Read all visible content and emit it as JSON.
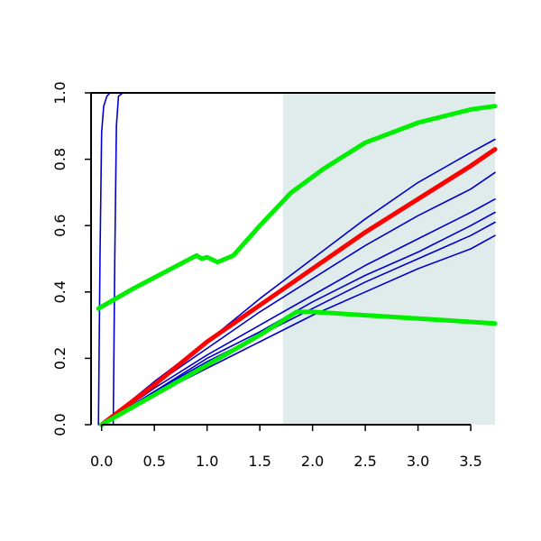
{
  "chart_data": {
    "type": "line",
    "title": "",
    "xlabel": "",
    "ylabel": "",
    "xlim": [
      -0.1,
      3.73
    ],
    "ylim": [
      0,
      1
    ],
    "x_ticks": [
      0,
      0.5,
      1,
      1.5,
      2,
      2.5,
      3,
      3.5
    ],
    "x_tick_labels": [
      "0.0",
      "0.5",
      "1.0",
      "1.5",
      "2.0",
      "2.5",
      "3.0",
      "3.5"
    ],
    "y_ticks": [
      0,
      0.2,
      0.4,
      0.6,
      0.8,
      1
    ],
    "y_tick_labels": [
      "0.0",
      "0.2",
      "0.4",
      "0.6",
      "0.8",
      "1.0"
    ],
    "grid": false,
    "shaded_region": {
      "x_start": 1.72,
      "x_end": 3.73,
      "color": "#dfeceb"
    },
    "series": [
      {
        "color": "#0000cc",
        "role": "thin",
        "points": [
          [
            -0.03,
            0
          ],
          [
            -0.015,
            0.5
          ],
          [
            0,
            0.88
          ],
          [
            0.02,
            0.96
          ],
          [
            0.05,
            0.99
          ],
          [
            0.08,
            1
          ],
          [
            0.15,
            1
          ],
          [
            3.73,
            1
          ]
        ]
      },
      {
        "color": "#0000cc",
        "role": "thin",
        "points": [
          [
            0.11,
            0
          ],
          [
            0.125,
            0.5
          ],
          [
            0.14,
            0.9
          ],
          [
            0.16,
            0.99
          ],
          [
            0.2,
            1
          ],
          [
            3.73,
            1
          ]
        ]
      },
      {
        "color": "#0000cc",
        "role": "thin",
        "points": [
          [
            0,
            0
          ],
          [
            0.5,
            0.13
          ],
          [
            1,
            0.25
          ],
          [
            1.5,
            0.38
          ],
          [
            2,
            0.5
          ],
          [
            2.5,
            0.62
          ],
          [
            3,
            0.73
          ],
          [
            3.5,
            0.82
          ],
          [
            3.73,
            0.86
          ]
        ]
      },
      {
        "color": "#0000cc",
        "role": "thin",
        "points": [
          [
            0,
            0
          ],
          [
            0.5,
            0.12
          ],
          [
            1,
            0.23
          ],
          [
            1.5,
            0.34
          ],
          [
            2,
            0.44
          ],
          [
            2.5,
            0.54
          ],
          [
            3,
            0.63
          ],
          [
            3.5,
            0.71
          ],
          [
            3.73,
            0.76
          ]
        ]
      },
      {
        "color": "#0000cc",
        "role": "thin",
        "points": [
          [
            0,
            0
          ],
          [
            0.5,
            0.11
          ],
          [
            1,
            0.21
          ],
          [
            1.5,
            0.3
          ],
          [
            2,
            0.39
          ],
          [
            2.5,
            0.48
          ],
          [
            3,
            0.56
          ],
          [
            3.5,
            0.64
          ],
          [
            3.73,
            0.68
          ]
        ]
      },
      {
        "color": "#0000cc",
        "role": "thin",
        "points": [
          [
            0,
            0
          ],
          [
            0.5,
            0.1
          ],
          [
            1,
            0.2
          ],
          [
            1.5,
            0.28
          ],
          [
            2,
            0.37
          ],
          [
            2.5,
            0.45
          ],
          [
            3,
            0.52
          ],
          [
            3.5,
            0.6
          ],
          [
            3.73,
            0.64
          ]
        ]
      },
      {
        "color": "#0000cc",
        "role": "thin",
        "points": [
          [
            0,
            0
          ],
          [
            0.5,
            0.1
          ],
          [
            1,
            0.19
          ],
          [
            1.5,
            0.27
          ],
          [
            2,
            0.35
          ],
          [
            2.5,
            0.43
          ],
          [
            3,
            0.5
          ],
          [
            3.5,
            0.57
          ],
          [
            3.73,
            0.61
          ]
        ]
      },
      {
        "color": "#0000cc",
        "role": "thin",
        "points": [
          [
            0,
            0
          ],
          [
            0.5,
            0.09
          ],
          [
            1,
            0.17
          ],
          [
            1.5,
            0.25
          ],
          [
            2,
            0.33
          ],
          [
            2.5,
            0.4
          ],
          [
            3,
            0.47
          ],
          [
            3.5,
            0.53
          ],
          [
            3.73,
            0.57
          ]
        ]
      },
      {
        "color": "#ff0000",
        "role": "thick",
        "points": [
          [
            0,
            0
          ],
          [
            0.5,
            0.12
          ],
          [
            1,
            0.25
          ],
          [
            1.5,
            0.36
          ],
          [
            2,
            0.47
          ],
          [
            2.5,
            0.58
          ],
          [
            3,
            0.68
          ],
          [
            3.5,
            0.78
          ],
          [
            3.73,
            0.83
          ]
        ]
      },
      {
        "color": "#00ee00",
        "role": "thick",
        "points": [
          [
            -0.03,
            0.35
          ],
          [
            0.3,
            0.41
          ],
          [
            0.6,
            0.46
          ],
          [
            0.9,
            0.51
          ],
          [
            0.95,
            0.5
          ],
          [
            1,
            0.505
          ],
          [
            1.1,
            0.49
          ],
          [
            1.25,
            0.51
          ],
          [
            1.5,
            0.6
          ],
          [
            1.8,
            0.7
          ],
          [
            2.1,
            0.77
          ],
          [
            2.5,
            0.85
          ],
          [
            3,
            0.91
          ],
          [
            3.5,
            0.95
          ],
          [
            3.73,
            0.96
          ]
        ]
      },
      {
        "color": "#00ee00",
        "role": "thick",
        "points": [
          [
            0,
            0
          ],
          [
            0.5,
            0.09
          ],
          [
            1,
            0.18
          ],
          [
            1.5,
            0.27
          ],
          [
            1.85,
            0.34
          ],
          [
            2,
            0.34
          ],
          [
            2.5,
            0.33
          ],
          [
            3,
            0.32
          ],
          [
            3.73,
            0.305
          ]
        ]
      }
    ]
  }
}
